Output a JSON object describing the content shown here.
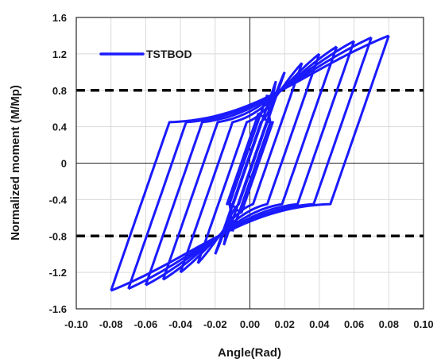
{
  "chart_data": {
    "type": "line",
    "title": "",
    "xlabel": "Angle(Rad)",
    "ylabel": "Normalized moment (M/Mp)",
    "xlim": [
      -0.1,
      0.1
    ],
    "ylim": [
      -1.6,
      1.6
    ],
    "x_ticks": [
      "-0.10",
      "-0.08",
      "-0.06",
      "-0.04",
      "-0.02",
      "0.00",
      "0.02",
      "0.04",
      "0.06",
      "0.08",
      "0.10"
    ],
    "y_ticks": [
      "-1.6",
      "-1.2",
      "-0.8",
      "-0.4",
      "0",
      "0.4",
      "0.8",
      "1.2",
      "1.6"
    ],
    "grid": true,
    "legend": {
      "placement": "top-left",
      "entries": [
        "TSTBOD"
      ]
    },
    "colors": {
      "series": "#1a1aff",
      "reference": "#000000",
      "grid": "#d9d9d9"
    },
    "reference_lines": [
      {
        "y": 0.8,
        "style": "dashed"
      },
      {
        "y": -0.8,
        "style": "dashed"
      }
    ],
    "series": [
      {
        "name": "TSTBOD",
        "style": "hysteresis-loops",
        "peak_amplitudes": [
          0.005,
          0.01,
          0.015,
          0.02,
          0.03,
          0.04,
          0.05,
          0.06,
          0.07,
          0.08
        ],
        "peak_moments": [
          0.55,
          0.75,
          0.9,
          1.0,
          1.1,
          1.2,
          1.28,
          1.34,
          1.38,
          1.4
        ],
        "elastic_slope": 55,
        "shoulder_moment": 0.45
      }
    ]
  }
}
